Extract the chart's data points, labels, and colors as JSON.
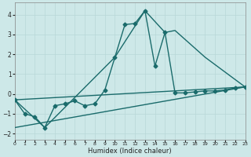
{
  "xlabel": "Humidex (Indice chaleur)",
  "ylabel": "",
  "xlim": [
    0,
    23
  ],
  "ylim": [
    -2.3,
    4.6
  ],
  "background_color": "#cde8e8",
  "grid_color": "#b8d8d8",
  "line_color": "#1a6b6b",
  "xticks": [
    0,
    1,
    2,
    3,
    4,
    5,
    6,
    7,
    8,
    9,
    10,
    11,
    12,
    13,
    14,
    15,
    16,
    17,
    18,
    19,
    20,
    21,
    22,
    23
  ],
  "yticks": [
    -2,
    -1,
    0,
    1,
    2,
    3,
    4
  ],
  "series": [
    {
      "x": [
        0,
        1,
        2,
        3,
        4,
        5,
        6,
        7,
        8,
        9,
        10,
        11,
        12,
        13,
        14,
        15,
        16,
        17,
        18,
        19,
        20,
        21,
        22,
        23
      ],
      "y": [
        -0.3,
        -1.0,
        -1.15,
        -1.7,
        -0.6,
        -0.5,
        -0.35,
        -0.6,
        -0.5,
        0.2,
        1.85,
        3.5,
        3.55,
        4.2,
        1.4,
        3.1,
        0.05,
        0.05,
        0.1,
        0.15,
        0.15,
        0.2,
        0.3,
        0.35
      ],
      "marker": "D",
      "markersize": 2.5,
      "linewidth": 1.0
    },
    {
      "x": [
        0,
        23
      ],
      "y": [
        -1.7,
        0.35
      ],
      "marker": null,
      "markersize": 0,
      "linewidth": 1.0
    },
    {
      "x": [
        0,
        23
      ],
      "y": [
        -0.3,
        0.35
      ],
      "marker": null,
      "markersize": 0,
      "linewidth": 1.0
    },
    {
      "x": [
        0,
        3,
        10,
        13,
        15,
        16,
        19,
        23
      ],
      "y": [
        -0.3,
        -1.7,
        1.85,
        4.2,
        3.1,
        3.2,
        1.85,
        0.35
      ],
      "marker": null,
      "markersize": 0,
      "linewidth": 1.0
    }
  ]
}
